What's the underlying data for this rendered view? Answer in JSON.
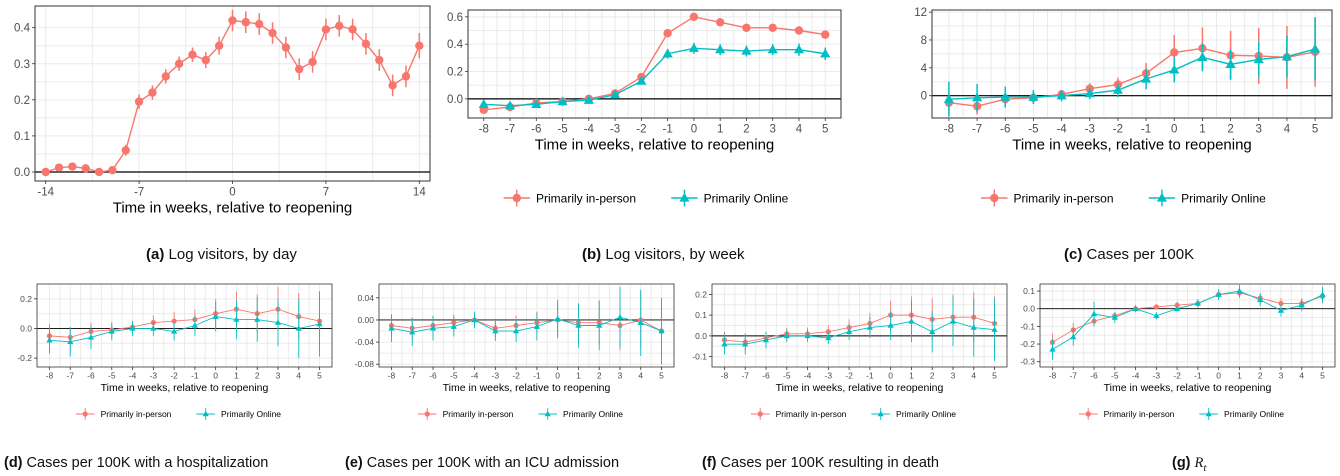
{
  "colors": {
    "inperson": "#F8766D",
    "online": "#00BFC4",
    "grid": "#EBEBEB",
    "frame": "#333333",
    "zero": "#000000"
  },
  "captions": [
    {
      "letter": "(a)",
      "text": "Log visitors, by day"
    },
    {
      "letter": "(b)",
      "text": "Log visitors, by week"
    },
    {
      "letter": "(c)",
      "text": "Cases per 100K"
    },
    {
      "letter": "(d)",
      "text": "Cases per 100K with a hospitalization"
    },
    {
      "letter": "(e)",
      "text": "Cases per 100K with an ICU admission"
    },
    {
      "letter": "(f)",
      "text": "Cases per 100K resulting in death"
    },
    {
      "letter": "(g)",
      "text": "R",
      "subscript": "t"
    }
  ],
  "chart_data": [
    {
      "id": "a",
      "type": "line",
      "xlabel": "Time in weeks, relative to reopening",
      "ylabel": "",
      "xlim": [
        -14.8,
        14.8
      ],
      "ylim": [
        -0.025,
        0.46
      ],
      "xticks": [
        -14,
        -7,
        0,
        7,
        14
      ],
      "yticks": [
        0.0,
        0.1,
        0.2,
        0.3,
        0.4
      ],
      "ytick_labels": [
        "0.0",
        "0.1",
        "0.2",
        "0.3",
        "0.4"
      ],
      "series": [
        {
          "key": "inperson",
          "marker": "circle",
          "x": [
            -14,
            -13,
            -12,
            -11,
            -10,
            -9,
            -8,
            -7,
            -6,
            -5,
            -4,
            -3,
            -2,
            -1,
            0,
            1,
            2,
            3,
            4,
            5,
            6,
            7,
            8,
            9,
            10,
            11,
            12,
            13,
            14
          ],
          "y": [
            0.0,
            0.012,
            0.015,
            0.01,
            0.0,
            0.005,
            0.06,
            0.195,
            0.22,
            0.265,
            0.3,
            0.325,
            0.31,
            0.35,
            0.42,
            0.415,
            0.41,
            0.385,
            0.345,
            0.285,
            0.305,
            0.395,
            0.405,
            0.395,
            0.355,
            0.31,
            0.24,
            0.265,
            0.35
          ],
          "err": [
            0.008,
            0.008,
            0.008,
            0.008,
            0.008,
            0.008,
            0.015,
            0.02,
            0.02,
            0.02,
            0.02,
            0.02,
            0.022,
            0.025,
            0.03,
            0.03,
            0.03,
            0.03,
            0.03,
            0.03,
            0.03,
            0.03,
            0.03,
            0.03,
            0.03,
            0.03,
            0.03,
            0.03,
            0.035
          ]
        }
      ]
    },
    {
      "id": "b",
      "type": "line",
      "xlabel": "Time in weeks, relative to reopening",
      "ylabel": "",
      "xlim": [
        -8.6,
        5.6
      ],
      "ylim": [
        -0.14,
        0.65
      ],
      "xticks": [
        -8,
        -7,
        -6,
        -5,
        -4,
        -3,
        -2,
        -1,
        0,
        1,
        2,
        3,
        4,
        5
      ],
      "yticks": [
        0.0,
        0.2,
        0.4,
        0.6
      ],
      "ytick_labels": [
        "0.0",
        "0.2",
        "0.4",
        "0.6"
      ],
      "legend": [
        "Primarily in-person",
        "Primarily Online"
      ],
      "series": [
        {
          "key": "inperson",
          "marker": "circle",
          "name": "Primarily in-person",
          "x": [
            -8,
            -7,
            -6,
            -5,
            -4,
            -3,
            -2,
            -1,
            0,
            1,
            2,
            3,
            4,
            5
          ],
          "y": [
            -0.08,
            -0.06,
            -0.03,
            -0.02,
            0.0,
            0.04,
            0.16,
            0.48,
            0.6,
            0.56,
            0.52,
            0.52,
            0.5,
            0.47
          ],
          "err": [
            0.015,
            0.015,
            0.015,
            0.015,
            0.015,
            0.02,
            0.02,
            0.025,
            0.03,
            0.03,
            0.03,
            0.03,
            0.03,
            0.03
          ]
        },
        {
          "key": "online",
          "marker": "triangle",
          "name": "Primarily Online",
          "x": [
            -8,
            -7,
            -6,
            -5,
            -4,
            -3,
            -2,
            -1,
            0,
            1,
            2,
            3,
            4,
            5
          ],
          "y": [
            -0.04,
            -0.05,
            -0.04,
            -0.02,
            -0.01,
            0.03,
            0.13,
            0.33,
            0.37,
            0.36,
            0.35,
            0.36,
            0.36,
            0.33
          ],
          "err": [
            0.03,
            0.02,
            0.02,
            0.015,
            0.015,
            0.02,
            0.02,
            0.035,
            0.04,
            0.04,
            0.04,
            0.04,
            0.045,
            0.045
          ]
        }
      ]
    },
    {
      "id": "c",
      "type": "line",
      "xlabel": "Time in weeks, relative to reopening",
      "ylabel": "",
      "xlim": [
        -8.6,
        5.6
      ],
      "ylim": [
        -3.2,
        12.3
      ],
      "xticks": [
        -8,
        -7,
        -6,
        -5,
        -4,
        -3,
        -2,
        -1,
        0,
        1,
        2,
        3,
        4,
        5
      ],
      "yticks": [
        0,
        4,
        8,
        12
      ],
      "ytick_labels": [
        "0",
        "4",
        "8",
        "12"
      ],
      "legend": [
        "Primarily in-person",
        "Primarily Online"
      ],
      "series": [
        {
          "key": "inperson",
          "marker": "circle",
          "name": "Primarily in-person",
          "x": [
            -8,
            -7,
            -6,
            -5,
            -4,
            -3,
            -2,
            -1,
            0,
            1,
            2,
            3,
            4,
            5
          ],
          "y": [
            -1.0,
            -1.5,
            -0.5,
            -0.3,
            0.2,
            1.0,
            1.6,
            3.2,
            6.2,
            6.8,
            5.8,
            5.7,
            5.5,
            6.3
          ],
          "err": [
            1.2,
            1.2,
            1.0,
            0.8,
            0.6,
            0.8,
            1.0,
            1.5,
            2.5,
            3.0,
            3.5,
            4.0,
            4.5,
            5.0
          ]
        },
        {
          "key": "online",
          "marker": "triangle",
          "name": "Primarily Online",
          "x": [
            -8,
            -7,
            -6,
            -5,
            -4,
            -3,
            -2,
            -1,
            0,
            1,
            2,
            3,
            4,
            5
          ],
          "y": [
            -0.5,
            -0.3,
            -0.2,
            -0.2,
            0.0,
            0.3,
            0.8,
            2.4,
            3.7,
            5.5,
            4.5,
            5.2,
            5.6,
            6.7
          ],
          "err": [
            2.5,
            2.0,
            1.5,
            1.0,
            0.8,
            0.8,
            1.0,
            1.5,
            1.8,
            2.0,
            2.2,
            2.5,
            3.0,
            4.5
          ]
        }
      ]
    },
    {
      "id": "d",
      "type": "line",
      "xlabel": "Time in weeks, relative to reopening",
      "ylabel": "",
      "xlim": [
        -8.6,
        5.6
      ],
      "ylim": [
        -0.26,
        0.3
      ],
      "xticks": [
        -8,
        -7,
        -6,
        -5,
        -4,
        -3,
        -2,
        -1,
        0,
        1,
        2,
        3,
        4,
        5
      ],
      "yticks": [
        -0.2,
        0.0,
        0.2
      ],
      "ytick_labels": [
        "-0.2",
        "0.0",
        "0.2"
      ],
      "legend": [
        "Primarily in-person",
        "Primarily Online"
      ],
      "series": [
        {
          "key": "inperson",
          "marker": "circle",
          "name": "Primarily in-person",
          "x": [
            -8,
            -7,
            -6,
            -5,
            -4,
            -3,
            -2,
            -1,
            0,
            1,
            2,
            3,
            4,
            5
          ],
          "y": [
            -0.05,
            -0.06,
            -0.02,
            -0.01,
            0.01,
            0.04,
            0.05,
            0.06,
            0.1,
            0.13,
            0.1,
            0.13,
            0.08,
            0.05
          ],
          "err": [
            0.08,
            0.07,
            0.06,
            0.05,
            0.04,
            0.05,
            0.06,
            0.07,
            0.1,
            0.12,
            0.13,
            0.15,
            0.16,
            0.2
          ]
        },
        {
          "key": "online",
          "marker": "triangle",
          "name": "Primarily Online",
          "x": [
            -8,
            -7,
            -6,
            -5,
            -4,
            -3,
            -2,
            -1,
            0,
            1,
            2,
            3,
            4,
            5
          ],
          "y": [
            -0.08,
            -0.09,
            -0.06,
            -0.02,
            0.0,
            0.0,
            -0.02,
            0.02,
            0.08,
            0.06,
            0.06,
            0.04,
            0.0,
            0.03
          ],
          "err": [
            0.09,
            0.1,
            0.08,
            0.06,
            0.05,
            0.05,
            0.06,
            0.07,
            0.1,
            0.13,
            0.15,
            0.16,
            0.2,
            0.22
          ]
        }
      ]
    },
    {
      "id": "e",
      "type": "line",
      "xlabel": "Time in weeks, relative to reopening",
      "ylabel": "",
      "xlim": [
        -8.6,
        5.6
      ],
      "ylim": [
        -0.085,
        0.065
      ],
      "xticks": [
        -8,
        -7,
        -6,
        -5,
        -4,
        -3,
        -2,
        -1,
        0,
        1,
        2,
        3,
        4,
        5
      ],
      "yticks": [
        -0.08,
        -0.04,
        0.0,
        0.04
      ],
      "ytick_labels": [
        "-0.08",
        "-0.04",
        "0.00",
        "0.04"
      ],
      "legend": [
        "Primarily in-person",
        "Primarily Online"
      ],
      "series": [
        {
          "key": "inperson",
          "marker": "circle",
          "name": "Primarily in-person",
          "x": [
            -8,
            -7,
            -6,
            -5,
            -4,
            -3,
            -2,
            -1,
            0,
            1,
            2,
            3,
            4,
            5
          ],
          "y": [
            -0.01,
            -0.015,
            -0.01,
            -0.005,
            0.0,
            -0.015,
            -0.01,
            -0.005,
            0.0,
            -0.005,
            -0.005,
            -0.01,
            0.0,
            -0.02
          ],
          "err": [
            0.02,
            0.02,
            0.018,
            0.015,
            0.012,
            0.015,
            0.018,
            0.02,
            0.03,
            0.035,
            0.04,
            0.045,
            0.05,
            0.05
          ]
        },
        {
          "key": "online",
          "marker": "triangle",
          "name": "Primarily Online",
          "x": [
            -8,
            -7,
            -6,
            -5,
            -4,
            -3,
            -2,
            -1,
            0,
            1,
            2,
            3,
            4,
            5
          ],
          "y": [
            -0.015,
            -0.022,
            -0.015,
            -0.012,
            0.0,
            -0.02,
            -0.02,
            -0.012,
            0.002,
            -0.01,
            -0.01,
            0.005,
            -0.005,
            -0.02
          ],
          "err": [
            0.025,
            0.025,
            0.022,
            0.018,
            0.015,
            0.018,
            0.02,
            0.025,
            0.035,
            0.04,
            0.045,
            0.055,
            0.06,
            0.06
          ]
        }
      ]
    },
    {
      "id": "f",
      "type": "line",
      "xlabel": "Time in weeks, relative to reopening",
      "ylabel": "",
      "xlim": [
        -8.6,
        5.6
      ],
      "ylim": [
        -0.15,
        0.25
      ],
      "xticks": [
        -8,
        -7,
        -6,
        -5,
        -4,
        -3,
        -2,
        -1,
        0,
        1,
        2,
        3,
        4,
        5
      ],
      "yticks": [
        -0.1,
        0.0,
        0.1,
        0.2
      ],
      "ytick_labels": [
        "-0.1",
        "0.0",
        "0.1",
        "0.2"
      ],
      "legend": [
        "Primarily in-person",
        "Primarily Online"
      ],
      "series": [
        {
          "key": "inperson",
          "marker": "circle",
          "name": "Primarily in-person",
          "x": [
            -8,
            -7,
            -6,
            -5,
            -4,
            -3,
            -2,
            -1,
            0,
            1,
            2,
            3,
            4,
            5
          ],
          "y": [
            -0.02,
            -0.03,
            -0.01,
            0.01,
            0.01,
            0.02,
            0.04,
            0.06,
            0.1,
            0.1,
            0.08,
            0.09,
            0.09,
            0.06
          ],
          "err": [
            0.04,
            0.04,
            0.03,
            0.03,
            0.03,
            0.03,
            0.04,
            0.05,
            0.07,
            0.09,
            0.1,
            0.11,
            0.12,
            0.13
          ]
        },
        {
          "key": "online",
          "marker": "triangle",
          "name": "Primarily Online",
          "x": [
            -8,
            -7,
            -6,
            -5,
            -4,
            -3,
            -2,
            -1,
            0,
            1,
            2,
            3,
            4,
            5
          ],
          "y": [
            -0.04,
            -0.04,
            -0.02,
            0.0,
            0.0,
            -0.01,
            0.02,
            0.04,
            0.05,
            0.07,
            0.02,
            0.07,
            0.04,
            0.03
          ],
          "err": [
            0.05,
            0.05,
            0.04,
            0.03,
            0.03,
            0.03,
            0.04,
            0.05,
            0.07,
            0.1,
            0.1,
            0.12,
            0.14,
            0.15
          ]
        }
      ]
    },
    {
      "id": "g",
      "type": "line",
      "xlabel": "Time in weeks, relative to reopening",
      "ylabel": "",
      "xlim": [
        -8.6,
        5.6
      ],
      "ylim": [
        -0.33,
        0.14
      ],
      "xticks": [
        -8,
        -7,
        -6,
        -5,
        -4,
        -3,
        -2,
        -1,
        0,
        1,
        2,
        3,
        4,
        5
      ],
      "yticks": [
        -0.3,
        -0.2,
        -0.1,
        0.0,
        0.1
      ],
      "ytick_labels": [
        "-0.3",
        "-0.2",
        "-0.1",
        "0.0",
        "0.1"
      ],
      "legend": [
        "Primarily in-person",
        "Primarily Online"
      ],
      "series": [
        {
          "key": "inperson",
          "marker": "circle",
          "name": "Primarily in-person",
          "x": [
            -8,
            -7,
            -6,
            -5,
            -4,
            -3,
            -2,
            -1,
            0,
            1,
            2,
            3,
            4,
            5
          ],
          "y": [
            -0.19,
            -0.12,
            -0.07,
            -0.04,
            0.0,
            0.01,
            0.02,
            0.03,
            0.08,
            0.09,
            0.06,
            0.03,
            0.03,
            0.07
          ],
          "err": [
            0.05,
            0.04,
            0.03,
            0.02,
            0.015,
            0.015,
            0.02,
            0.02,
            0.03,
            0.03,
            0.03,
            0.03,
            0.03,
            0.04
          ]
        },
        {
          "key": "online",
          "marker": "triangle",
          "name": "Primarily Online",
          "x": [
            -8,
            -7,
            -6,
            -5,
            -4,
            -3,
            -2,
            -1,
            0,
            1,
            2,
            3,
            4,
            5
          ],
          "y": [
            -0.23,
            -0.16,
            -0.03,
            -0.05,
            0.0,
            -0.04,
            0.0,
            0.03,
            0.08,
            0.1,
            0.05,
            -0.01,
            0.02,
            0.08
          ],
          "err": [
            0.06,
            0.05,
            0.07,
            0.03,
            0.02,
            0.02,
            0.02,
            0.025,
            0.03,
            0.035,
            0.035,
            0.035,
            0.035,
            0.045
          ]
        }
      ]
    }
  ]
}
